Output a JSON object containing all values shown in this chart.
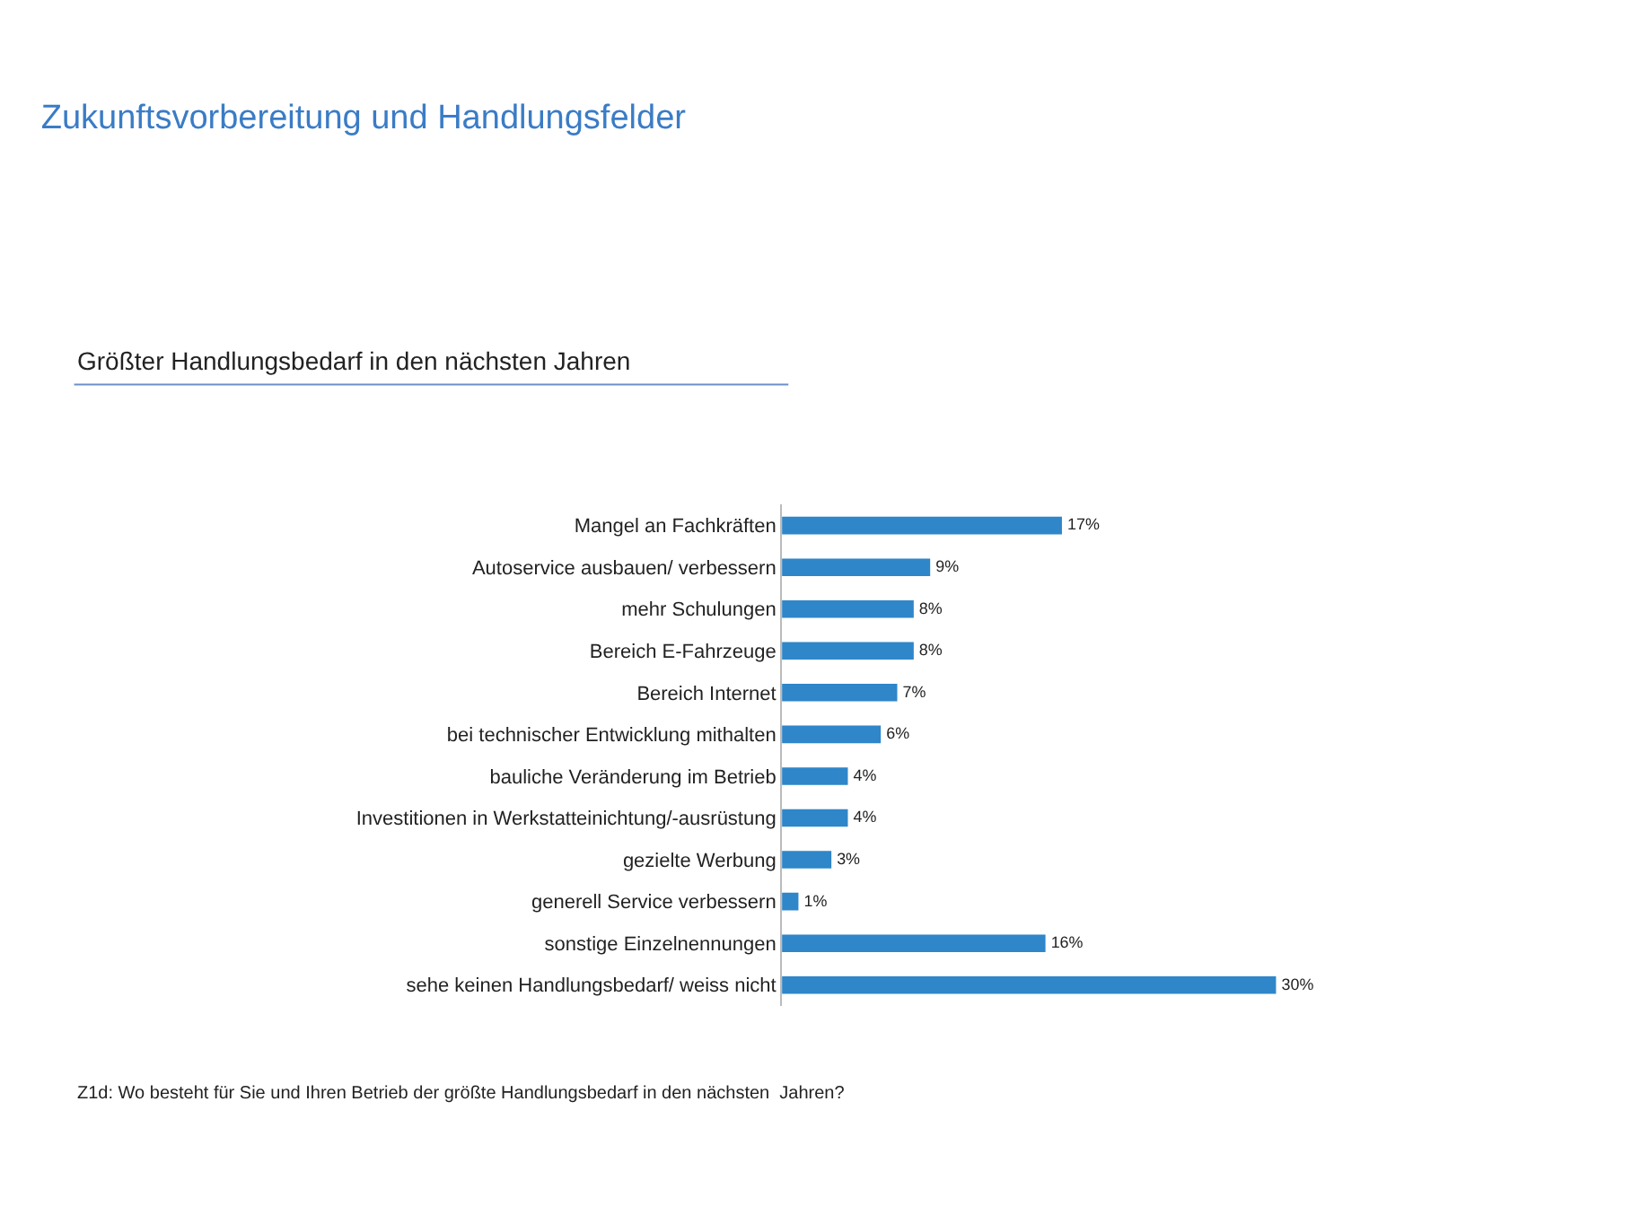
{
  "chart_data": {
    "type": "bar",
    "orientation": "horizontal",
    "title": "Zukunftsvorbereitung und Handlungsfelder",
    "subtitle": "Größter Handlungsbedarf in den nächsten Jahren",
    "categories": [
      "Mangel an Fachkräften",
      "Autoservice ausbauen/ verbessern",
      "mehr Schulungen",
      "Bereich E-Fahrzeuge",
      "Bereich Internet",
      "bei technischer Entwicklung mithalten",
      "bauliche Veränderung im Betrieb",
      "Investitionen in Werkstatteinichtung/-ausrüstung",
      "gezielte Werbung",
      "generell Service verbessern",
      "sonstige Einzelnennungen",
      "sehe keinen Handlungsbedarf/ weiss nicht"
    ],
    "values": [
      17,
      9,
      8,
      8,
      7,
      6,
      4,
      4,
      3,
      1,
      16,
      30
    ],
    "value_labels": [
      "17%",
      "9%",
      "8%",
      "8%",
      "7%",
      "6%",
      "4%",
      "4%",
      "3%",
      "1%",
      "16%",
      "30%"
    ],
    "color": "#2f86c9",
    "annotations": [
      "Z1d: Wo besteht für Sie und Ihren Betrieb der größte Handlungsbedarf in den nächsten  Jahren?"
    ]
  }
}
